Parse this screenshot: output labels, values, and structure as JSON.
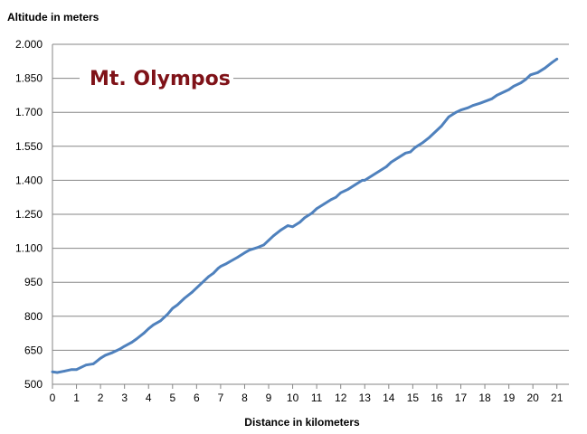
{
  "chart_data": {
    "type": "line",
    "xlabel": "Distance in kilometers",
    "ylabel": "Altitude in meters",
    "annotation": "Mt. Olympos",
    "xlim": [
      0,
      21.5
    ],
    "ylim": [
      500,
      2000
    ],
    "x_ticks": [
      "0",
      "1",
      "2",
      "3",
      "4",
      "5",
      "6",
      "7",
      "8",
      "9",
      "10",
      "11",
      "12",
      "13",
      "14",
      "15",
      "16",
      "17",
      "18",
      "19",
      "20",
      "21"
    ],
    "y_ticks": [
      "500",
      "650",
      "800",
      "950",
      "1.100",
      "1.250",
      "1.400",
      "1.550",
      "1.700",
      "1.850",
      "2.000"
    ],
    "grid": "horizontal",
    "series": [
      {
        "color": "#4f81bd",
        "x": [
          0,
          0.2,
          0.5,
          0.8,
          1.0,
          1.2,
          1.4,
          1.7,
          1.8,
          2.0,
          2.2,
          2.5,
          2.8,
          3.0,
          3.3,
          3.5,
          3.8,
          4.0,
          4.2,
          4.5,
          4.8,
          5.0,
          5.2,
          5.5,
          5.8,
          6.0,
          6.3,
          6.5,
          6.7,
          6.9,
          7.0,
          7.2,
          7.5,
          7.7,
          8.0,
          8.2,
          8.5,
          8.8,
          9.0,
          9.2,
          9.5,
          9.8,
          10.0,
          10.3,
          10.5,
          10.8,
          11.0,
          11.3,
          11.6,
          11.8,
          12.0,
          12.3,
          12.6,
          12.9,
          13.0,
          13.3,
          13.6,
          13.9,
          14.1,
          14.4,
          14.7,
          14.9,
          15.1,
          15.4,
          15.7,
          16.0,
          16.2,
          16.5,
          16.8,
          17.0,
          17.3,
          17.5,
          17.8,
          18.0,
          18.3,
          18.5,
          18.8,
          19.0,
          19.2,
          19.5,
          19.7,
          19.9,
          20.2,
          20.5,
          20.8,
          21.0
        ],
        "y": [
          555,
          552,
          558,
          565,
          565,
          575,
          585,
          590,
          598,
          615,
          628,
          640,
          655,
          668,
          685,
          700,
          725,
          745,
          762,
          780,
          810,
          835,
          850,
          880,
          905,
          925,
          955,
          975,
          990,
          1012,
          1020,
          1030,
          1048,
          1060,
          1080,
          1092,
          1102,
          1115,
          1135,
          1155,
          1180,
          1200,
          1195,
          1215,
          1235,
          1255,
          1275,
          1295,
          1315,
          1325,
          1345,
          1360,
          1380,
          1400,
          1400,
          1420,
          1440,
          1460,
          1480,
          1500,
          1520,
          1525,
          1545,
          1565,
          1590,
          1620,
          1640,
          1680,
          1700,
          1710,
          1720,
          1730,
          1740,
          1748,
          1760,
          1775,
          1790,
          1800,
          1815,
          1830,
          1845,
          1865,
          1875,
          1895,
          1920,
          1935
        ]
      }
    ]
  }
}
